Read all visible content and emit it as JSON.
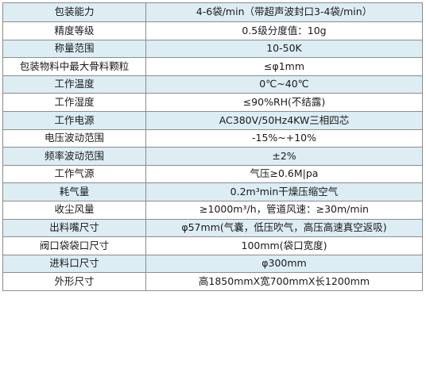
{
  "spec_table": {
    "rows": [
      {
        "label": "包装能力",
        "value": "4-6袋/min（带超声波封口3-4袋/min）"
      },
      {
        "label": "精度等级",
        "value": "0.5级分度值：10g"
      },
      {
        "label": "称量范围",
        "value": "10-50K"
      },
      {
        "label": "包装物料中最大骨料颗粒",
        "value": "≤φ1mm"
      },
      {
        "label": "工作温度",
        "value": "0℃~40℃"
      },
      {
        "label": "工作湿度",
        "value": "≤90%RH(不结露)"
      },
      {
        "label": "工作电源",
        "value": "AC380V/50Hz4KW三相四芯"
      },
      {
        "label": "电压波动范围",
        "value": "-15%~+10%"
      },
      {
        "label": "频率波动范围",
        "value": "±2%"
      },
      {
        "label": "工作气源",
        "value": "气压≥0.6M|pa"
      },
      {
        "label": "耗气量",
        "value": "0.2m³min干燥压缩空气"
      },
      {
        "label": "收尘风量",
        "value": "≥1000m³/h，管道风速：≥30m/min"
      },
      {
        "label": "出料嘴尺寸",
        "value": "φ57mm(气囊，低压吹气，高压高速真空返吸)"
      },
      {
        "label": "阀口袋袋口尺寸",
        "value": "100mm(袋口宽度)"
      },
      {
        "label": "进料口尺寸",
        "value": "φ300mm"
      },
      {
        "label": "外形尺寸",
        "value": "高1850mmX宽700mmX长1200mm"
      }
    ]
  }
}
